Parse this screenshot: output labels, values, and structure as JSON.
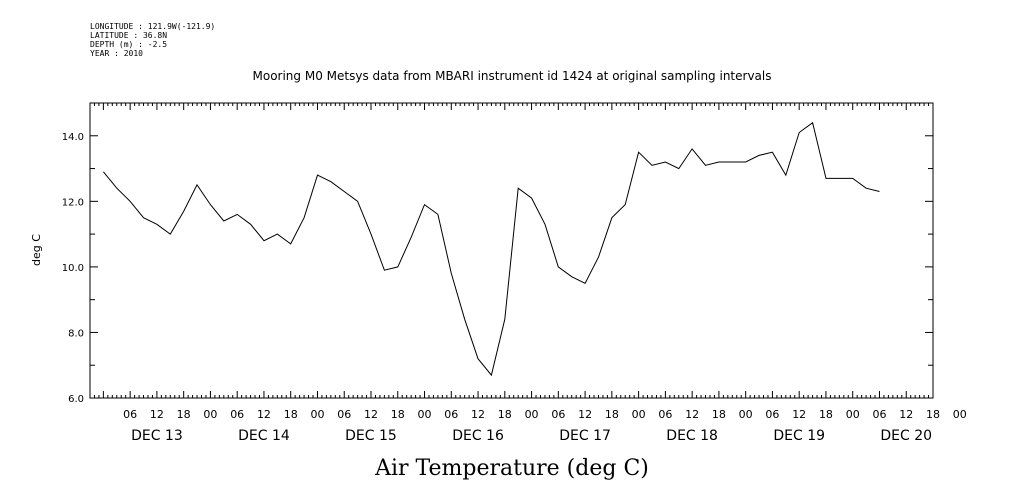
{
  "meta": [
    "LONGITUDE : 121.9W(-121.9)",
    "LATITUDE : 36.8N",
    "DEPTH (m) : -2.5",
    "YEAR : 2010"
  ],
  "chart_data": {
    "type": "line",
    "title": "Mooring M0 Metsys data from MBARI instrument id 1424 at original sampling intervals",
    "xlabel": "Air Temperature (deg C)",
    "ylabel": "deg C",
    "ylim": [
      6.0,
      15.0
    ],
    "yticks": [
      "6.0",
      "8.0",
      "10.0",
      "12.0",
      "14.0"
    ],
    "xlim": [
      "2010-12-12T21:00",
      "2010-12-20T18:00"
    ],
    "hour_ticks": [
      "06",
      "12",
      "18",
      "00",
      "06",
      "12",
      "18",
      "00",
      "06",
      "12",
      "18",
      "00",
      "06",
      "12",
      "18",
      "00",
      "06",
      "12",
      "18",
      "00",
      "06",
      "12",
      "18",
      "00",
      "06",
      "12",
      "18",
      "00",
      "06",
      "12",
      "18",
      "00"
    ],
    "day_labels": [
      "DEC 13",
      "DEC 14",
      "DEC 15",
      "DEC 16",
      "DEC 17",
      "DEC 18",
      "DEC 19",
      "DEC 20"
    ],
    "grid": false,
    "series": [
      {
        "x": [
          "2010-12-13T00:00",
          "2010-12-13T03:00",
          "2010-12-13T06:00",
          "2010-12-13T09:00",
          "2010-12-13T12:00",
          "2010-12-13T15:00",
          "2010-12-13T18:00",
          "2010-12-13T21:00",
          "2010-12-14T00:00",
          "2010-12-14T03:00",
          "2010-12-14T06:00",
          "2010-12-14T09:00",
          "2010-12-14T12:00",
          "2010-12-14T15:00",
          "2010-12-14T18:00",
          "2010-12-14T21:00",
          "2010-12-15T00:00",
          "2010-12-15T03:00",
          "2010-12-15T06:00",
          "2010-12-15T09:00",
          "2010-12-15T12:00",
          "2010-12-15T15:00",
          "2010-12-15T18:00",
          "2010-12-15T21:00",
          "2010-12-16T00:00",
          "2010-12-16T03:00",
          "2010-12-16T06:00",
          "2010-12-16T09:00",
          "2010-12-16T12:00",
          "2010-12-16T15:00",
          "2010-12-16T18:00",
          "2010-12-16T21:00",
          "2010-12-17T00:00",
          "2010-12-17T03:00",
          "2010-12-17T06:00",
          "2010-12-17T09:00",
          "2010-12-17T12:00",
          "2010-12-17T15:00",
          "2010-12-17T18:00",
          "2010-12-17T21:00",
          "2010-12-18T00:00",
          "2010-12-18T03:00",
          "2010-12-18T06:00",
          "2010-12-18T09:00",
          "2010-12-18T12:00",
          "2010-12-18T15:00",
          "2010-12-18T18:00",
          "2010-12-18T21:00",
          "2010-12-19T00:00",
          "2010-12-19T03:00",
          "2010-12-19T06:00",
          "2010-12-19T09:00",
          "2010-12-19T12:00",
          "2010-12-19T15:00",
          "2010-12-19T18:00",
          "2010-12-19T21:00",
          "2010-12-20T00:00",
          "2010-12-20T03:00",
          "2010-12-20T06:00"
        ],
        "y": [
          12.9,
          12.4,
          12.0,
          11.5,
          11.3,
          11.0,
          11.7,
          12.5,
          11.9,
          11.4,
          11.6,
          11.3,
          10.8,
          11.0,
          10.7,
          11.5,
          12.8,
          12.6,
          12.3,
          12.0,
          11.0,
          9.9,
          10.0,
          10.9,
          11.9,
          11.6,
          9.8,
          8.4,
          7.2,
          6.7,
          8.4,
          12.4,
          12.1,
          11.3,
          10.0,
          9.7,
          9.5,
          10.3,
          11.5,
          11.9,
          13.5,
          13.1,
          13.2,
          13.0,
          13.6,
          13.1,
          13.2,
          13.2,
          13.2,
          13.4,
          13.5,
          12.8,
          14.1,
          14.4,
          12.7,
          12.7,
          12.7,
          12.4,
          12.3
        ]
      }
    ]
  }
}
